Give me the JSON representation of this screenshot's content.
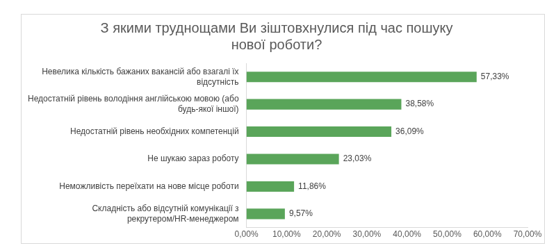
{
  "chart_data": {
    "type": "bar",
    "orientation": "horizontal",
    "title": "З якими труднощами Ви зіштовхнулися під час пошуку нової роботи?",
    "categories": [
      "Невелика кількість бажаних вакансій або взагалі їх відсутність",
      "Недостатній рівень володіння англійською мовою (або будь-якої іншої)",
      "Недостатній рівень необхідних компетенцій",
      "Не шукаю зараз роботу",
      "Неможливість переїхати на нове місце роботи",
      "Складність або відсутній комунікації з рекрутером/HR-менеджером"
    ],
    "values": [
      57.33,
      38.58,
      36.09,
      23.03,
      11.86,
      9.57
    ],
    "value_labels": [
      "57,33%",
      "38,58%",
      "36,09%",
      "23,03%",
      "11,86%",
      "9,57%"
    ],
    "data_labels": true,
    "color": "#5aa55a",
    "xlim": [
      0,
      70
    ],
    "xticks": [
      {
        "value": 0,
        "label": "0,00%"
      },
      {
        "value": 10,
        "label": "10,00%"
      },
      {
        "value": 20,
        "label": "20,00%"
      },
      {
        "value": 30,
        "label": "30,00%"
      },
      {
        "value": 40,
        "label": "40,00%"
      },
      {
        "value": 50,
        "label": "50,00%"
      },
      {
        "value": 60,
        "label": "60,00%"
      },
      {
        "value": 70,
        "label": "70,00%"
      }
    ],
    "grid": false
  }
}
